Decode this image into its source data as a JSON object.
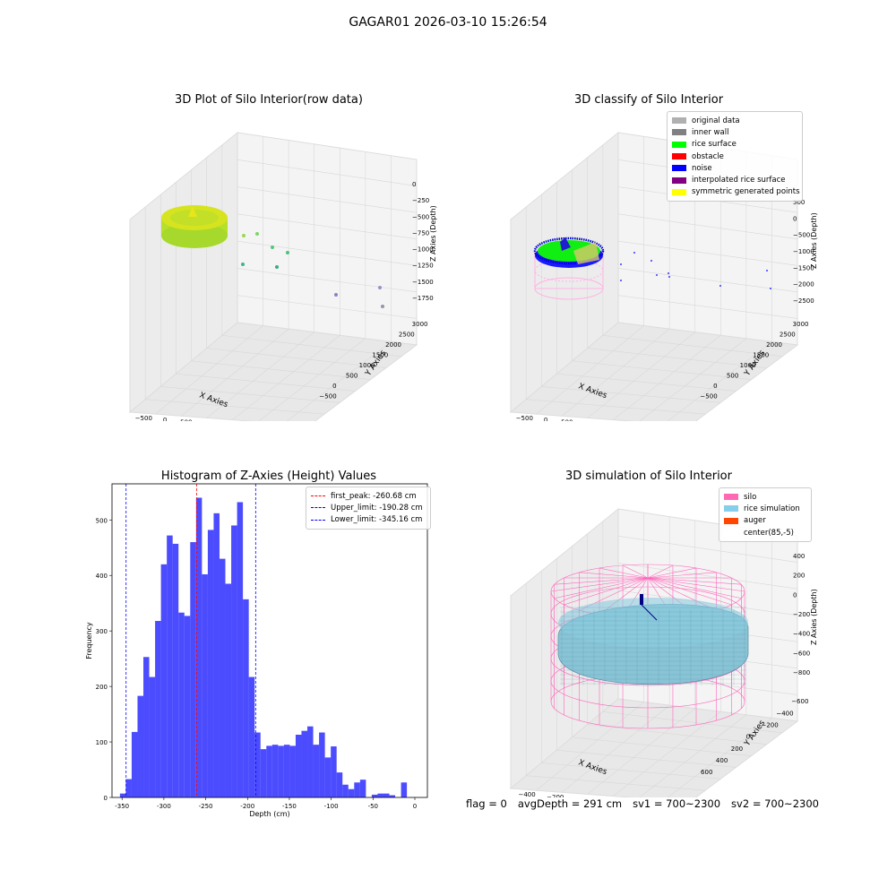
{
  "figure": {
    "suptitle": "GAGAR01 2026-03-10 15:26:54"
  },
  "panels": {
    "raw": {
      "title": "3D Plot of Silo Interior(row data)",
      "xlabel": "X Axies",
      "ylabel": "Y Axies",
      "zlabel": "Z Axies (Depth)",
      "xticks": [
        "−500",
        "0",
        "500",
        "1000",
        "1500",
        "2000",
        "2500",
        "3000"
      ],
      "yticks": [
        "−500",
        "0",
        "500",
        "1000",
        "1500",
        "2000",
        "2500",
        "3000"
      ],
      "zticks": [
        "0",
        "−250",
        "−500",
        "−750",
        "−1000",
        "−1250",
        "−1500",
        "−1750"
      ]
    },
    "classify": {
      "title": "3D classify of Silo Interior",
      "xlabel": "X Axies",
      "ylabel": "Y Axies",
      "zlabel": "Z Axies (Depth)",
      "xticks": [
        "−500",
        "0",
        "500",
        "1000",
        "1500",
        "2000",
        "2500",
        "3000"
      ],
      "yticks": [
        "−500",
        "0",
        "500",
        "1000",
        "1500",
        "2000",
        "2500",
        "3000"
      ],
      "zticks": [
        "500",
        "0",
        "−500",
        "−1000",
        "−1500",
        "−2000",
        "−2500"
      ],
      "legend": [
        {
          "label": "original data",
          "color": "#b0b0b0"
        },
        {
          "label": "inner wall",
          "color": "#808080"
        },
        {
          "label": "rice surface",
          "color": "#00ff00"
        },
        {
          "label": "obstacle",
          "color": "#ff0000"
        },
        {
          "label": "noise",
          "color": "#0000ff"
        },
        {
          "label": "interpolated rice surface",
          "color": "#800080"
        },
        {
          "label": "symmetric generated points",
          "color": "#ffff00"
        }
      ]
    },
    "simulation": {
      "title": "3D simulation of Silo Interior",
      "xlabel": "X Axies",
      "ylabel": "Y Axies",
      "zlabel": "Z Axies (Depth)",
      "xticks": [
        "−400",
        "−200",
        "0",
        "200",
        "400",
        "600"
      ],
      "yticks": [
        "600",
        "400",
        "200",
        "0",
        "−200",
        "−400",
        "−600"
      ],
      "zticks": [
        "400",
        "200",
        "0",
        "−200",
        "−400",
        "−600",
        "−800"
      ],
      "legend": [
        {
          "label": "silo",
          "color": "#ff69b4"
        },
        {
          "label": "rice simulation",
          "color": "#87ceeb"
        },
        {
          "label": "auger",
          "color": "#ff4500"
        },
        {
          "label": "center(85,-5)",
          "color": "#ffffff"
        }
      ]
    }
  },
  "chart_data": {
    "type": "bar",
    "title": "Histogram of Z-Axies (Height) Values",
    "xlabel": "Depth (cm)",
    "ylabel": "Frequency",
    "xlim": [
      -362,
      15
    ],
    "ylim": [
      0,
      565
    ],
    "xticks": [
      -350,
      -300,
      -250,
      -200,
      -150,
      -100,
      -50,
      0
    ],
    "yticks": [
      0,
      100,
      200,
      300,
      400,
      500
    ],
    "bin_start": -352.5,
    "bin_width": 7.0,
    "values": [
      7,
      33,
      118,
      183,
      253,
      217,
      318,
      420,
      472,
      457,
      333,
      327,
      460,
      540,
      402,
      482,
      512,
      430,
      385,
      490,
      532,
      357,
      217,
      117,
      87,
      93,
      95,
      93,
      95,
      93,
      113,
      120,
      128,
      95,
      117,
      72,
      92,
      45,
      23,
      15,
      27,
      32,
      0,
      5,
      7,
      7,
      4,
      0,
      27
    ],
    "color": "#0000ff",
    "vlines": [
      {
        "label": "first_peak: -260.68 cm",
        "x": -260.68,
        "color": "#ff0000"
      },
      {
        "label": "Upper_limit: -190.28 cm",
        "x": -190.28,
        "color": "#0000ff"
      },
      {
        "label": "Lower_limit: -345.16 cm",
        "x": -345.16,
        "color": "#0000ff"
      }
    ],
    "legend_loc": "upper right"
  },
  "footer": {
    "flag": "flag = 0",
    "avg": "avgDepth = 291 cm",
    "sv1": "sv1 = 700~2300",
    "sv2": "sv2 = 700~2300"
  }
}
